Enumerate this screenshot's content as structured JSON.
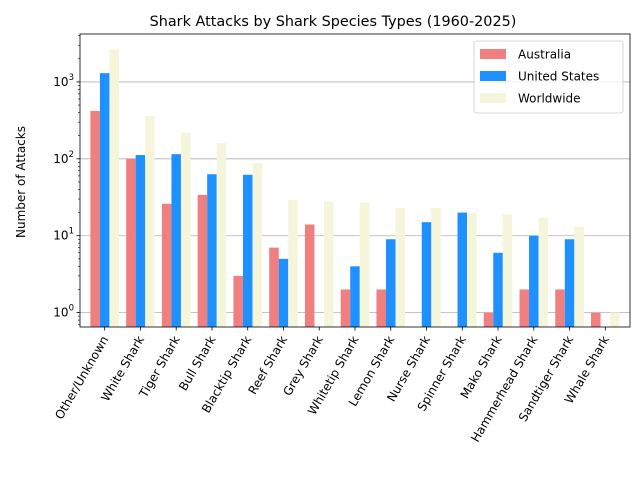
{
  "chart_data": {
    "type": "bar",
    "title": "Shark Attacks by Shark Species Types (1960-2025)",
    "xlabel": "",
    "ylabel": "Number of Attacks",
    "yscale": "log",
    "ylim": [
      0.65,
      4200
    ],
    "yticks": [
      {
        "value": 1,
        "base": "10",
        "exp": "0"
      },
      {
        "value": 10,
        "base": "10",
        "exp": "1"
      },
      {
        "value": 100,
        "base": "10",
        "exp": "2"
      },
      {
        "value": 1000,
        "base": "10",
        "exp": "3"
      }
    ],
    "grid": "horizontal major",
    "legend_position": "top-right",
    "categories": [
      "Other/Unknown",
      "White Shark",
      "Tiger Shark",
      "Bull Shark",
      "Blacktip Shark",
      "Reef Shark",
      "Grey Shark",
      "Whitetip Shark",
      "Lemon Shark",
      "Nurse Shark",
      "Spinner Shark",
      "Mako Shark",
      "Hammerhead Shark",
      "Sandtiger Shark",
      "Whale Shark"
    ],
    "series": [
      {
        "name": "Australia",
        "color": "#f08080",
        "values": [
          420,
          100,
          26,
          34,
          3,
          7,
          14,
          2,
          2,
          null,
          null,
          1,
          2,
          2,
          1
        ]
      },
      {
        "name": "United States",
        "color": "#1e90ff",
        "values": [
          1300,
          112,
          115,
          63,
          62,
          5,
          null,
          4,
          9,
          15,
          20,
          6,
          10,
          9,
          null
        ]
      },
      {
        "name": "Worldwide",
        "color": "#f5f5dc",
        "values": [
          2650,
          360,
          220,
          160,
          88,
          29,
          28,
          27,
          23,
          23,
          20,
          19,
          17,
          13,
          1
        ]
      }
    ]
  }
}
